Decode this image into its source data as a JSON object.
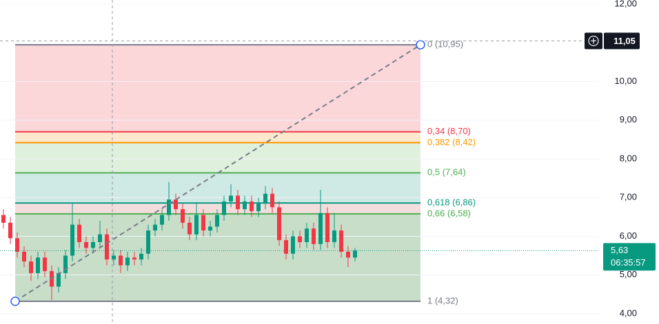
{
  "chart_data": {
    "type": "candlestick",
    "up_color": "#089981",
    "down_color": "#f23645",
    "ylim": [
      4,
      12
    ],
    "yticks": [
      {
        "value": 12,
        "label": "12,00"
      },
      {
        "value": 10,
        "label": "10,00"
      },
      {
        "value": 9,
        "label": "9,00"
      },
      {
        "value": 8,
        "label": "8,00"
      },
      {
        "value": 7,
        "label": "7,00"
      },
      {
        "value": 6,
        "label": "6,00"
      },
      {
        "value": 5,
        "label": "5,00"
      },
      {
        "value": 4,
        "label": "4,00"
      }
    ],
    "open": [
      6.55,
      6.35,
      5.95,
      5.6,
      5.35,
      5.05,
      5.45,
      5.1,
      4.7,
      5.05,
      5.5,
      6.3,
      5.85,
      5.7,
      5.85,
      6.05,
      5.4,
      5.5,
      5.25,
      5.45,
      5.4,
      5.55,
      6.15,
      6.3,
      6.55,
      6.95,
      6.7,
      6.35,
      6.05,
      6.55,
      6.15,
      6.25,
      6.55,
      6.9,
      7.05,
      6.7,
      6.9,
      6.65,
      6.85,
      7.1,
      6.75,
      5.9,
      5.55,
      6.0,
      5.85,
      6.2,
      5.8,
      6.6,
      5.85,
      6.15,
      5.6,
      5.45
    ],
    "high": [
      6.7,
      6.5,
      6.1,
      5.75,
      5.5,
      5.6,
      5.6,
      5.25,
      5.2,
      5.65,
      6.85,
      6.45,
      6.0,
      6.0,
      6.4,
      6.2,
      5.65,
      5.65,
      5.6,
      5.6,
      5.7,
      6.3,
      6.45,
      6.7,
      7.4,
      7.1,
      6.85,
      6.5,
      6.85,
      6.7,
      6.4,
      6.7,
      7.05,
      7.35,
      7.2,
      7.05,
      7.05,
      7.0,
      7.3,
      7.25,
      6.9,
      6.05,
      6.15,
      6.15,
      6.35,
      6.35,
      7.2,
      6.75,
      6.6,
      6.3,
      5.75,
      5.7
    ],
    "low": [
      6.2,
      5.8,
      5.45,
      5.2,
      4.85,
      4.9,
      4.95,
      4.35,
      4.55,
      4.9,
      5.35,
      5.7,
      5.55,
      5.55,
      5.7,
      5.25,
      5.25,
      5.05,
      5.1,
      5.25,
      5.25,
      5.4,
      6.0,
      6.15,
      6.4,
      6.55,
      6.2,
      5.9,
      5.9,
      6.0,
      6.0,
      6.1,
      6.4,
      6.75,
      6.55,
      6.55,
      6.5,
      6.5,
      6.7,
      6.6,
      5.75,
      5.4,
      5.4,
      5.7,
      5.7,
      5.65,
      5.65,
      5.7,
      5.7,
      5.45,
      5.2,
      5.35
    ],
    "close": [
      6.35,
      5.95,
      5.6,
      5.35,
      5.05,
      5.45,
      5.1,
      4.7,
      5.05,
      5.5,
      6.3,
      5.85,
      5.7,
      5.85,
      6.05,
      5.4,
      5.5,
      5.25,
      5.45,
      5.4,
      5.55,
      6.15,
      6.3,
      6.55,
      6.95,
      6.7,
      6.35,
      6.05,
      6.55,
      6.15,
      6.25,
      6.55,
      6.9,
      7.05,
      6.7,
      6.9,
      6.65,
      6.85,
      7.1,
      6.75,
      5.9,
      5.55,
      6.0,
      5.85,
      6.2,
      5.8,
      6.6,
      5.85,
      6.15,
      5.6,
      5.45,
      5.63
    ],
    "fib_levels": [
      {
        "value": 10.95,
        "label": "0 (10,95)",
        "color": "#787b86",
        "fill": "#fbd7da"
      },
      {
        "value": 8.7,
        "label": "0,34 (8,70)",
        "color": "#f23645",
        "fill": "#fce8cc"
      },
      {
        "value": 8.42,
        "label": "0,382 (8,42)",
        "color": "#ff9800",
        "fill": "#dff0dc"
      },
      {
        "value": 7.64,
        "label": "0,5 (7,64)",
        "color": "#4caf50",
        "fill": "#cfe9e4"
      },
      {
        "value": 6.86,
        "label": "0,618 (6,86)",
        "color": "#089981",
        "fill": "#f2dcdc"
      },
      {
        "value": 6.58,
        "label": "0,66 (6,58)",
        "color": "#4caf50",
        "fill": "#c8dec9"
      },
      {
        "value": 4.32,
        "label": "1 (4,32)",
        "color": "#787b86"
      }
    ],
    "crosshair_price": {
      "value": 11.05,
      "label": "11,05"
    },
    "last_price": {
      "value": 5.63,
      "label": "5,63",
      "color": "#089981"
    },
    "countdown": "06:35:57"
  }
}
